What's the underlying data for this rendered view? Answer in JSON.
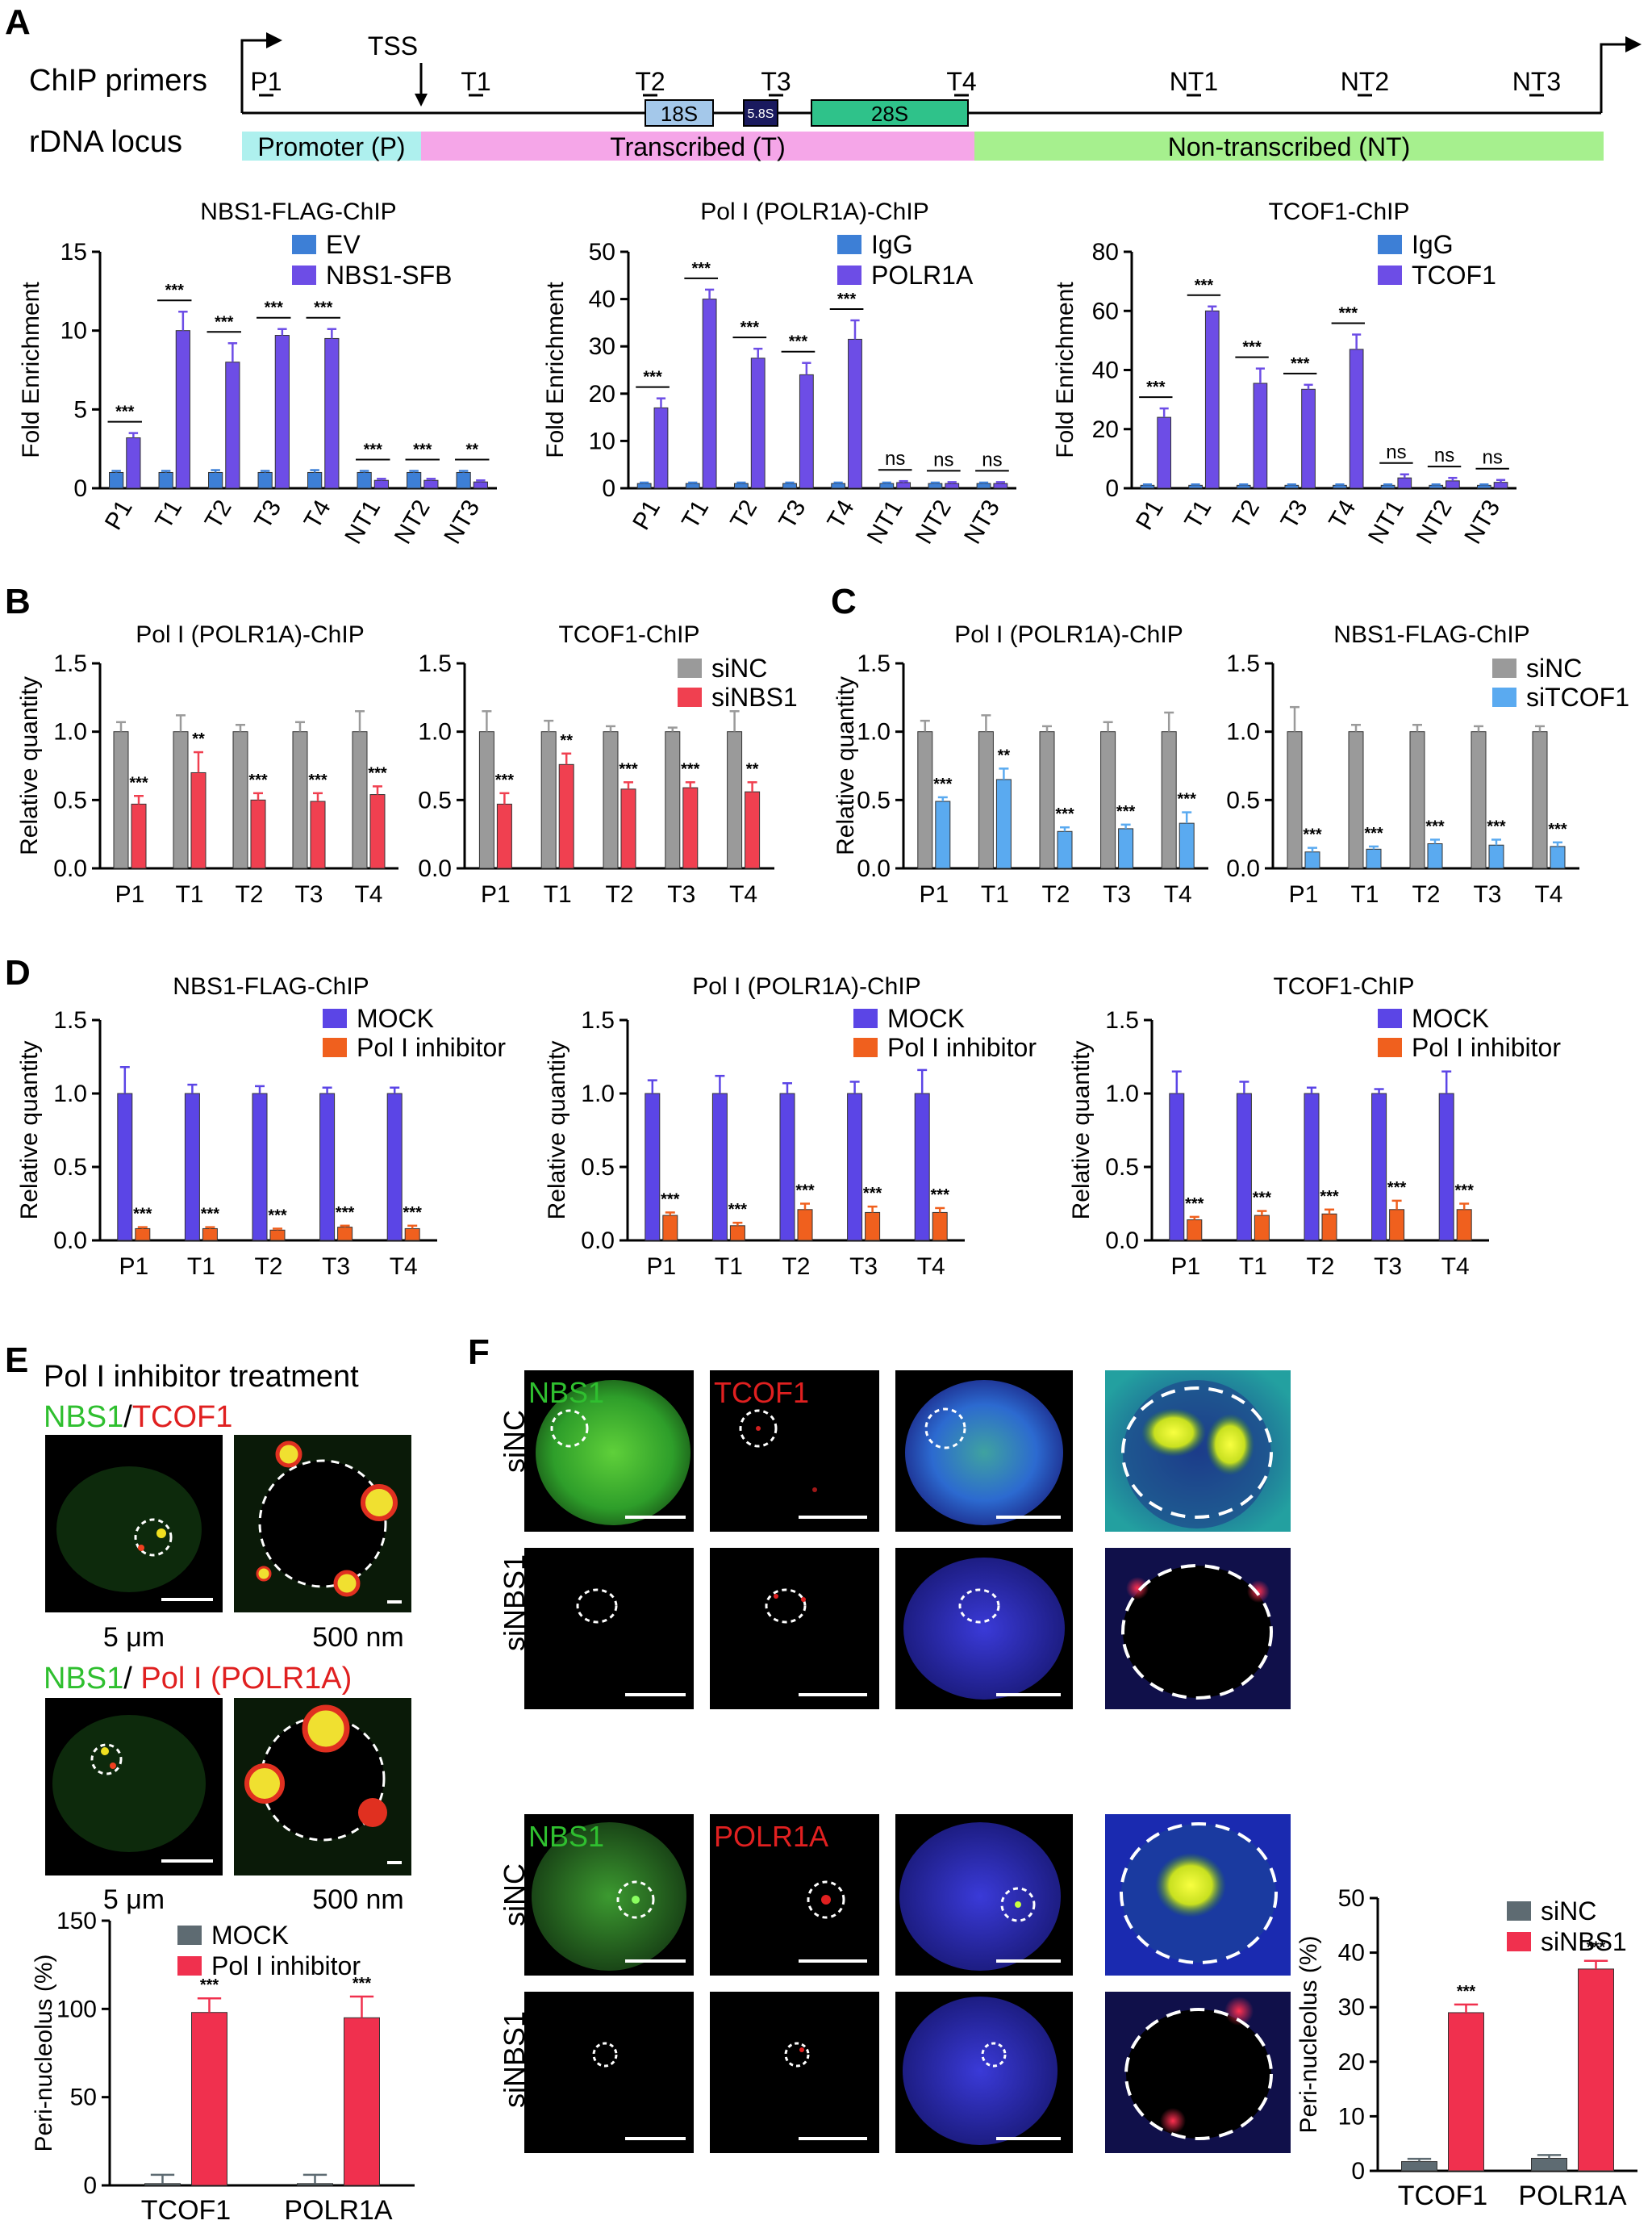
{
  "panels": {
    "A": "A",
    "B": "B",
    "C": "C",
    "D": "D",
    "E": "E",
    "F": "F"
  },
  "colors": {
    "ev_blue": "#3d7fd6",
    "target_violet": "#6d4de6",
    "gray": "#9a9a9a",
    "red": "#f04050",
    "light_blue": "#5aaaf0",
    "mock_violet": "#5b45e6",
    "inhibitor_orange": "#f0601e",
    "dark_gray": "#5e6b72",
    "crimson": "#f0304e",
    "promoter": "#aef0ee",
    "transcribed": "#f5a6e8",
    "nontranscribed": "#a6f08e",
    "gene_18s": "#a4c8ea",
    "gene_58s": "#1a1a5e",
    "gene_28s": "#2fc28a"
  },
  "diagram": {
    "row1_label": "ChIP primers",
    "row2_label": "rDNA locus",
    "tss_label": "TSS",
    "primers": [
      "P1",
      "T1",
      "T2",
      "T3",
      "T4",
      "NT1",
      "NT2",
      "NT3"
    ],
    "genes": [
      "18S",
      "5.8S",
      "28S"
    ],
    "regions": [
      "Promoter (P)",
      "Transcribed (T)",
      "Non-transcribed (NT)"
    ]
  },
  "chart_data": [
    {
      "id": "A1",
      "type": "bar",
      "title": "NBS1-FLAG-ChIP",
      "ylabel": "Fold Enrichment",
      "ylim": [
        0,
        15
      ],
      "yticks": [
        0,
        5,
        10,
        15
      ],
      "categories": [
        "P1",
        "T1",
        "T2",
        "T3",
        "T4",
        "NT1",
        "NT2",
        "NT3"
      ],
      "series": [
        {
          "name": "EV",
          "color": "#3d7fd6",
          "values": [
            1,
            1,
            1,
            1,
            1,
            1,
            1,
            1
          ],
          "errors": [
            0.1,
            0.1,
            0.15,
            0.1,
            0.15,
            0.1,
            0.1,
            0.1
          ]
        },
        {
          "name": "NBS1-SFB",
          "color": "#6d4de6",
          "values": [
            3.2,
            10,
            8,
            9.7,
            9.5,
            0.5,
            0.5,
            0.4
          ],
          "errors": [
            0.3,
            1.2,
            1.2,
            0.4,
            0.6,
            0.1,
            0.1,
            0.1
          ]
        }
      ],
      "significance": [
        "***",
        "***",
        "***",
        "***",
        "***",
        "***",
        "***",
        "**"
      ]
    },
    {
      "id": "A2",
      "type": "bar",
      "title": "Pol I (POLR1A)-ChIP",
      "ylabel": "Fold Enrichment",
      "ylim": [
        0,
        50
      ],
      "yticks": [
        0,
        10,
        20,
        30,
        40,
        50
      ],
      "categories": [
        "P1",
        "T1",
        "T2",
        "T3",
        "T4",
        "NT1",
        "NT2",
        "NT3"
      ],
      "series": [
        {
          "name": "IgG",
          "color": "#3d7fd6",
          "values": [
            1,
            1,
            1,
            1,
            1,
            1,
            1,
            1
          ],
          "errors": [
            0.2,
            0.2,
            0.2,
            0.2,
            0.2,
            0.2,
            0.2,
            0.2
          ]
        },
        {
          "name": "POLR1A",
          "color": "#6d4de6",
          "values": [
            17,
            40,
            27.5,
            24,
            31.5,
            1.2,
            1,
            1
          ],
          "errors": [
            2,
            2,
            2,
            2.5,
            4,
            0.3,
            0.3,
            0.3
          ]
        }
      ],
      "significance": [
        "***",
        "***",
        "***",
        "***",
        "***",
        "ns",
        "ns",
        "ns"
      ]
    },
    {
      "id": "A3",
      "type": "bar",
      "title": "TCOF1-ChIP",
      "ylabel": "Fold Enrichment",
      "ylim": [
        0,
        80
      ],
      "yticks": [
        0,
        20,
        40,
        60,
        80
      ],
      "categories": [
        "P1",
        "T1",
        "T2",
        "T3",
        "T4",
        "NT1",
        "NT2",
        "NT3"
      ],
      "series": [
        {
          "name": "IgG",
          "color": "#3d7fd6",
          "values": [
            1,
            1,
            1,
            1,
            1,
            1,
            1,
            1
          ],
          "errors": [
            0.3,
            0.3,
            0.3,
            0.3,
            0.3,
            0.3,
            0.3,
            0.3
          ]
        },
        {
          "name": "TCOF1",
          "color": "#6d4de6",
          "values": [
            24,
            60,
            35.5,
            33.5,
            47,
            3.5,
            2.5,
            2
          ],
          "errors": [
            3,
            1.5,
            5,
            1.5,
            5,
            1.2,
            1,
            0.8
          ]
        }
      ],
      "significance": [
        "***",
        "***",
        "***",
        "***",
        "***",
        "ns",
        "ns",
        "ns"
      ]
    },
    {
      "id": "B1",
      "type": "bar",
      "title": "Pol I (POLR1A)-ChIP",
      "ylabel": "Relative quantity",
      "ylim": [
        0,
        1.5
      ],
      "yticks": [
        "0.0",
        "0.5",
        "1.0",
        "1.5"
      ],
      "categories": [
        "P1",
        "T1",
        "T2",
        "T3",
        "T4"
      ],
      "series": [
        {
          "name": "siNC",
          "color": "#9a9a9a",
          "values": [
            1,
            1,
            1,
            1,
            1
          ],
          "errors": [
            0.07,
            0.12,
            0.05,
            0.07,
            0.15
          ]
        },
        {
          "name": "siNBS1",
          "color": "#f04050",
          "values": [
            0.47,
            0.7,
            0.5,
            0.49,
            0.54
          ],
          "errors": [
            0.06,
            0.15,
            0.05,
            0.06,
            0.06
          ]
        }
      ],
      "significance": [
        "***",
        "**",
        "***",
        "***",
        "***"
      ]
    },
    {
      "id": "B2",
      "type": "bar",
      "title": "TCOF1-ChIP",
      "ylabel": "",
      "ylim": [
        0,
        1.5
      ],
      "yticks": [
        "0.0",
        "0.5",
        "1.0",
        "1.5"
      ],
      "categories": [
        "P1",
        "T1",
        "T2",
        "T3",
        "T4"
      ],
      "series": [
        {
          "name": "siNC",
          "color": "#9a9a9a",
          "values": [
            1,
            1,
            1,
            1,
            1
          ],
          "errors": [
            0.15,
            0.08,
            0.04,
            0.03,
            0.15
          ]
        },
        {
          "name": "siNBS1",
          "color": "#f04050",
          "values": [
            0.47,
            0.76,
            0.58,
            0.59,
            0.56
          ],
          "errors": [
            0.08,
            0.08,
            0.05,
            0.04,
            0.07
          ]
        }
      ],
      "significance": [
        "***",
        "**",
        "***",
        "***",
        "**"
      ]
    },
    {
      "id": "C1",
      "type": "bar",
      "title": "Pol I (POLR1A)-ChIP",
      "ylabel": "Relative quantity",
      "ylim": [
        0,
        1.5
      ],
      "yticks": [
        "0.0",
        "0.5",
        "1.0",
        "1.5"
      ],
      "categories": [
        "P1",
        "T1",
        "T2",
        "T3",
        "T4"
      ],
      "series": [
        {
          "name": "siNC",
          "color": "#9a9a9a",
          "values": [
            1,
            1,
            1,
            1,
            1
          ],
          "errors": [
            0.08,
            0.12,
            0.04,
            0.07,
            0.14
          ]
        },
        {
          "name": "siTCOF1",
          "color": "#5aaaf0",
          "values": [
            0.49,
            0.65,
            0.27,
            0.29,
            0.33
          ],
          "errors": [
            0.03,
            0.08,
            0.03,
            0.03,
            0.08
          ]
        }
      ],
      "significance": [
        "***",
        "**",
        "***",
        "***",
        "***"
      ]
    },
    {
      "id": "C2",
      "type": "bar",
      "title": "NBS1-FLAG-ChIP",
      "ylabel": "",
      "ylim": [
        0,
        1.5
      ],
      "yticks": [
        "0.0",
        "0.5",
        "1.0",
        "1.5"
      ],
      "categories": [
        "P1",
        "T1",
        "T2",
        "T3",
        "T4"
      ],
      "series": [
        {
          "name": "siNC",
          "color": "#9a9a9a",
          "values": [
            1,
            1,
            1,
            1,
            1
          ],
          "errors": [
            0.18,
            0.05,
            0.05,
            0.04,
            0.04
          ]
        },
        {
          "name": "siTCOF1",
          "color": "#5aaaf0",
          "values": [
            0.12,
            0.14,
            0.18,
            0.17,
            0.16
          ],
          "errors": [
            0.03,
            0.02,
            0.03,
            0.04,
            0.03
          ]
        }
      ],
      "significance": [
        "***",
        "***",
        "***",
        "***",
        "***"
      ]
    },
    {
      "id": "D1",
      "type": "bar",
      "title": "NBS1-FLAG-ChIP",
      "ylabel": "Relative quantity",
      "ylim": [
        0,
        1.5
      ],
      "yticks": [
        "0.0",
        "0.5",
        "1.0",
        "1.5"
      ],
      "categories": [
        "P1",
        "T1",
        "T2",
        "T3",
        "T4"
      ],
      "series": [
        {
          "name": "MOCK",
          "color": "#5b45e6",
          "values": [
            1,
            1,
            1,
            1,
            1
          ],
          "errors": [
            0.18,
            0.06,
            0.05,
            0.04,
            0.04
          ]
        },
        {
          "name": "Pol I inhibitor",
          "color": "#f0601e",
          "values": [
            0.08,
            0.08,
            0.07,
            0.09,
            0.08
          ],
          "errors": [
            0.01,
            0.01,
            0.01,
            0.01,
            0.02
          ]
        }
      ],
      "significance": [
        "***",
        "***",
        "***",
        "***",
        "***"
      ]
    },
    {
      "id": "D2",
      "type": "bar",
      "title": "Pol I (POLR1A)-ChIP",
      "ylabel": "Relative quantity",
      "ylim": [
        0,
        1.5
      ],
      "yticks": [
        "0.0",
        "0.5",
        "1.0",
        "1.5"
      ],
      "categories": [
        "P1",
        "T1",
        "T2",
        "T3",
        "T4"
      ],
      "series": [
        {
          "name": "MOCK",
          "color": "#5b45e6",
          "values": [
            1,
            1,
            1,
            1,
            1
          ],
          "errors": [
            0.09,
            0.12,
            0.07,
            0.08,
            0.16
          ]
        },
        {
          "name": "Pol I inhibitor",
          "color": "#f0601e",
          "values": [
            0.17,
            0.1,
            0.21,
            0.19,
            0.19
          ],
          "errors": [
            0.02,
            0.02,
            0.04,
            0.04,
            0.03
          ]
        }
      ],
      "significance": [
        "***",
        "***",
        "***",
        "***",
        "***"
      ]
    },
    {
      "id": "D3",
      "type": "bar",
      "title": "TCOF1-ChIP",
      "ylabel": "Relative quantity",
      "ylim": [
        0,
        1.5
      ],
      "yticks": [
        "0.0",
        "0.5",
        "1.0",
        "1.5"
      ],
      "categories": [
        "P1",
        "T1",
        "T2",
        "T3",
        "T4"
      ],
      "series": [
        {
          "name": "MOCK",
          "color": "#5b45e6",
          "values": [
            1,
            1,
            1,
            1,
            1
          ],
          "errors": [
            0.15,
            0.08,
            0.04,
            0.03,
            0.15
          ]
        },
        {
          "name": "Pol I inhibitor",
          "color": "#f0601e",
          "values": [
            0.14,
            0.17,
            0.18,
            0.21,
            0.21
          ],
          "errors": [
            0.02,
            0.03,
            0.03,
            0.06,
            0.04
          ]
        }
      ],
      "significance": [
        "***",
        "***",
        "***",
        "***",
        "***"
      ]
    },
    {
      "id": "E",
      "type": "bar",
      "title": "",
      "ylabel": "Peri-nucleolus (%)",
      "ylim": [
        0,
        150
      ],
      "yticks": [
        0,
        50,
        100,
        150
      ],
      "categories": [
        "TCOF1",
        "POLR1A"
      ],
      "series": [
        {
          "name": "MOCK",
          "color": "#5e6b72",
          "values": [
            1,
            1
          ],
          "errors": [
            5,
            5
          ]
        },
        {
          "name": "Pol I inhibitor",
          "color": "#f0304e",
          "values": [
            98,
            95
          ],
          "errors": [
            8,
            12
          ]
        }
      ],
      "significance": [
        "***",
        "***"
      ]
    },
    {
      "id": "F",
      "type": "bar",
      "title": "",
      "ylabel": "Peri-nucleolus (%)",
      "ylim": [
        0,
        50
      ],
      "yticks": [
        0,
        10,
        20,
        30,
        40,
        50
      ],
      "categories": [
        "TCOF1",
        "POLR1A"
      ],
      "series": [
        {
          "name": "siNC",
          "color": "#5e6b72",
          "values": [
            1.7,
            2.3
          ],
          "errors": [
            0.5,
            0.6
          ]
        },
        {
          "name": "siNBS1",
          "color": "#f0304e",
          "values": [
            29,
            37
          ],
          "errors": [
            1.5,
            1.5
          ]
        }
      ],
      "significance": [
        "***",
        "***"
      ]
    }
  ],
  "panelE": {
    "title": "Pol I inhibitor treatment",
    "label1_green": "NBS1",
    "label1_sep": "/",
    "label1_red": "TCOF1",
    "label2_green": "NBS1",
    "label2_sep": "/ ",
    "label2_red": "Pol I (POLR1A)",
    "scale_cell": "5 μm",
    "scale_zoom": "500 nm"
  },
  "panelF": {
    "rows": [
      "siNC",
      "siNBS1",
      "siNC",
      "siNBS1"
    ],
    "top_channels": [
      "NBS1",
      "TCOF1"
    ],
    "bottom_channels": [
      "NBS1",
      "POLR1A"
    ]
  }
}
